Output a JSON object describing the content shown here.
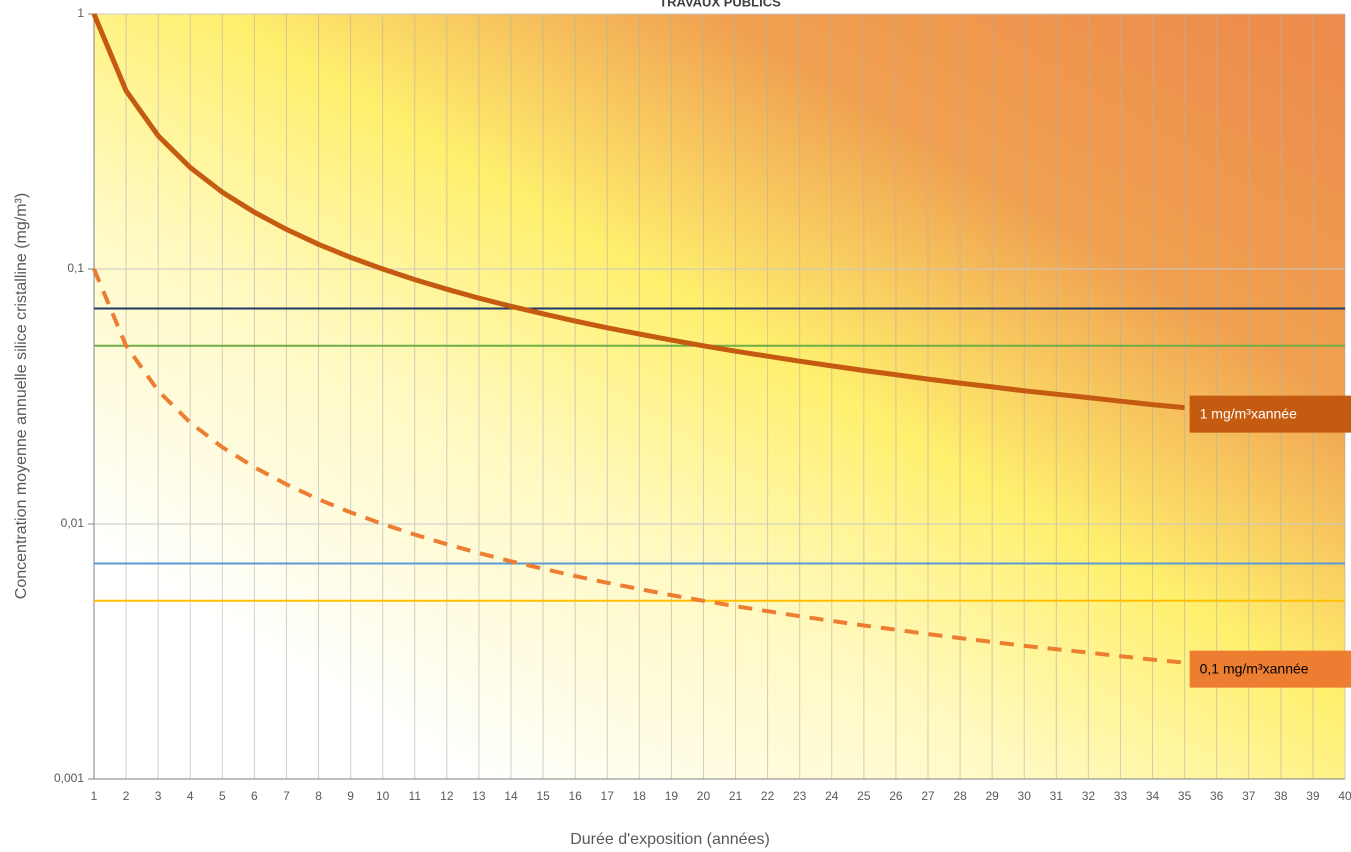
{
  "chart_data": {
    "type": "line",
    "title": "TRAVAUX PUBLICS",
    "x_label": "Durée d'exposition (années)",
    "y_label": "Concentration moyenne  annuelle silice cristalline (mg/m³)",
    "log_y": true,
    "grid": true,
    "xlim": [
      1,
      40
    ],
    "ylim": [
      0.001,
      1
    ],
    "xticks": [
      1,
      2,
      3,
      4,
      5,
      6,
      7,
      8,
      9,
      10,
      11,
      12,
      13,
      14,
      15,
      16,
      17,
      18,
      19,
      20,
      21,
      22,
      23,
      24,
      25,
      26,
      27,
      28,
      29,
      30,
      31,
      32,
      33,
      34,
      35,
      36,
      37,
      38,
      39,
      40
    ],
    "yticks": [
      {
        "value": 0.001,
        "label": "0,001"
      },
      {
        "value": 0.01,
        "label": "0,01"
      },
      {
        "value": 0.1,
        "label": "0,1"
      },
      1
    ],
    "series": [
      {
        "color": "#c55a11",
        "width": 5,
        "dashed": false,
        "label": "1 mg/m³xannée",
        "label_color": "#c55a11",
        "label_text_color": "#ffffff",
        "x": [
          1,
          2,
          3,
          4,
          5,
          6,
          7,
          8,
          9,
          10,
          11,
          12,
          13,
          14,
          15,
          16,
          17,
          18,
          19,
          20,
          21,
          22,
          23,
          24,
          25,
          26,
          27,
          28,
          29,
          30,
          31,
          32,
          33,
          34,
          35
        ],
        "values": [
          1,
          0.5,
          0.333,
          0.25,
          0.2,
          0.167,
          0.143,
          0.125,
          0.111,
          0.1,
          0.0909,
          0.0833,
          0.0769,
          0.0714,
          0.0667,
          0.0625,
          0.0588,
          0.0556,
          0.0526,
          0.05,
          0.0476,
          0.0455,
          0.0435,
          0.0417,
          0.04,
          0.0385,
          0.037,
          0.0357,
          0.0345,
          0.0333,
          0.0323,
          0.0313,
          0.0303,
          0.0294,
          0.0286
        ]
      },
      {
        "color": "#ed7d31",
        "width": 4,
        "dashed": true,
        "label": "0,1 mg/m³xannée",
        "label_color": "#ed7d31",
        "label_text_color": "#000000",
        "x": [
          1,
          2,
          3,
          4,
          5,
          6,
          7,
          8,
          9,
          10,
          11,
          12,
          13,
          14,
          15,
          16,
          17,
          18,
          19,
          20,
          21,
          22,
          23,
          24,
          25,
          26,
          27,
          28,
          29,
          30,
          31,
          32,
          33,
          34,
          35
        ],
        "values": [
          0.1,
          0.05,
          0.0333,
          0.025,
          0.02,
          0.0167,
          0.0143,
          0.0125,
          0.0111,
          0.01,
          0.00909,
          0.00833,
          0.00769,
          0.00714,
          0.00667,
          0.00625,
          0.00588,
          0.00556,
          0.00526,
          0.005,
          0.00476,
          0.00455,
          0.00435,
          0.00417,
          0.004,
          0.00385,
          0.0037,
          0.00357,
          0.00345,
          0.00333,
          0.00323,
          0.00313,
          0.00303,
          0.00294,
          0.00286
        ]
      },
      {
        "color": "#1f3864",
        "width": 2,
        "dashed": false,
        "x": [
          1,
          40
        ],
        "values": [
          0.07,
          0.07
        ]
      },
      {
        "color": "#70ad47",
        "width": 2,
        "dashed": false,
        "x": [
          1,
          40
        ],
        "values": [
          0.05,
          0.05
        ]
      },
      {
        "color": "#5b9bd5",
        "width": 2,
        "dashed": false,
        "x": [
          1,
          40
        ],
        "values": [
          0.007,
          0.007
        ]
      },
      {
        "color": "#ffc000",
        "width": 2,
        "dashed": false,
        "x": [
          1,
          40
        ],
        "values": [
          0.005,
          0.005
        ]
      }
    ]
  }
}
